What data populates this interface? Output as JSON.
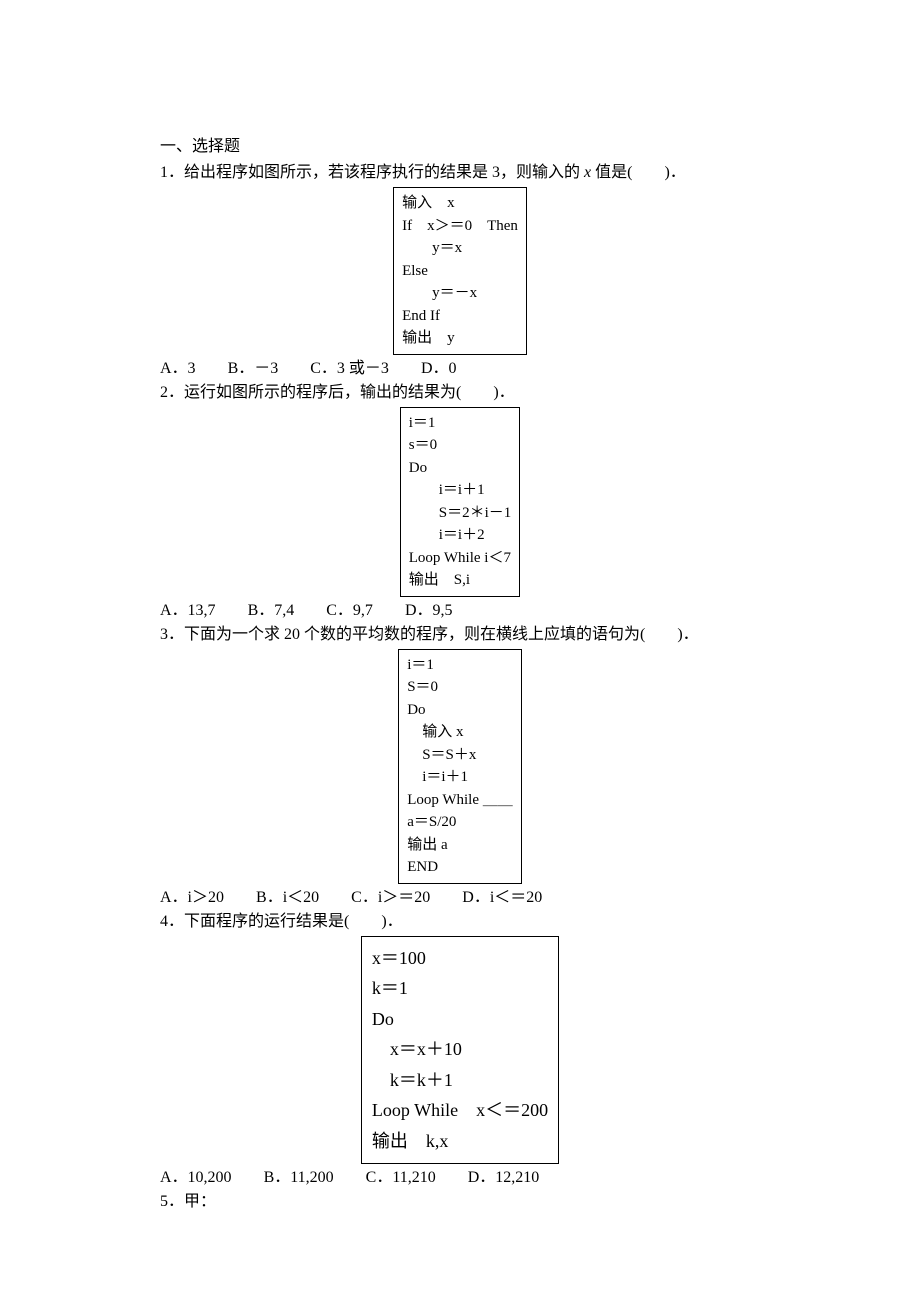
{
  "section": "一、选择题",
  "q1": {
    "stem_pre": "1．给出程序如图所示，若该程序执行的结果是 3，则输入的 ",
    "var": "x",
    "stem_post": " 值是(　　)．",
    "code": "输入　x\nIf　x＞＝0　Then\n　　y＝x\nElse\n　　y＝－x\nEnd If\n输出　y",
    "optA": "A．3",
    "optB": "B．－3",
    "optC": "C．3 或－3",
    "optD": "D．0"
  },
  "q2": {
    "stem": "2．运行如图所示的程序后，输出的结果为(　　)．",
    "code": "i＝1\ns＝0\nDo\n　　i＝i＋1\n　　S＝2＊i－1\n　　i＝i＋2\nLoop While i＜7\n输出　S,i",
    "optA": "A．13,7",
    "optB": "B．7,4",
    "optC": "C．9,7",
    "optD": "D．9,5"
  },
  "q3": {
    "stem": "3．下面为一个求 20 个数的平均数的程序，则在横线上应填的语句为(　　)．",
    "code": "i＝1\nS＝0\nDo\n　输入 x\n　S＝S＋x\n　i＝i＋1\nLoop While ＿＿\na＝S/20\n输出 a\nEND",
    "optA": "A．i＞20",
    "optB": "B．i＜20",
    "optC": "C．i＞＝20",
    "optD": "D．i＜＝20"
  },
  "q4": {
    "stem": "4．下面程序的运行结果是(　　)．",
    "code": "x＝100\nk＝1\nDo\n　x＝x＋10\n　k＝k＋1\nLoop While　x＜＝200\n输出　k,x",
    "optA": "A．10,200",
    "optB": "B．11,200",
    "optC": "C．11,210",
    "optD": "D．12,210"
  },
  "q5": {
    "stem": "5．甲："
  }
}
